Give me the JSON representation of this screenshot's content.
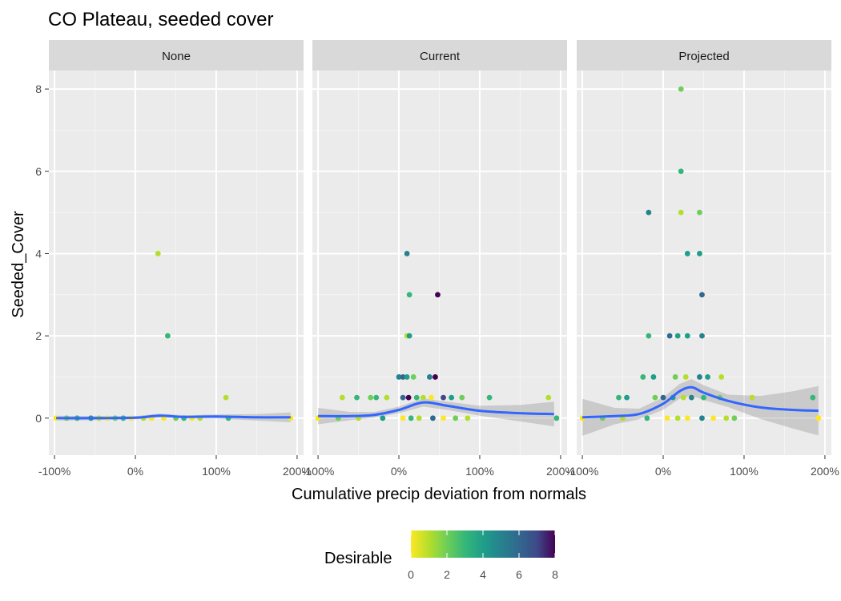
{
  "chart_data": {
    "type": "scatter",
    "title": "CO Plateau, seeded cover",
    "xlabel": "Cumulative precip deviation from normals",
    "ylabel": "Seeded_Cover",
    "xlim": [
      -1.0,
      2.0
    ],
    "ylim": [
      0,
      8
    ],
    "x_ticks": [
      -1,
      0,
      1,
      2
    ],
    "x_tick_labels": [
      "-100%",
      "0%",
      "100%",
      "200%"
    ],
    "y_ticks": [
      0,
      2,
      4,
      6,
      8
    ],
    "y_tick_labels": [
      "0",
      "2",
      "4",
      "6",
      "8"
    ],
    "grid": true,
    "legend": {
      "title": "Desirable",
      "position": "bottom",
      "type": "colorbar",
      "range": [
        0,
        8
      ],
      "ticks": [
        "0",
        "2",
        "4",
        "6",
        "8"
      ],
      "palette": "viridis reversed"
    },
    "facets": [
      {
        "label": "None",
        "points": [
          {
            "x": 0.28,
            "y": 4,
            "c": 1
          },
          {
            "x": 0.4,
            "y": 2,
            "c": 3
          },
          {
            "x": 1.12,
            "y": 0.5,
            "c": 1
          },
          {
            "x": -0.98,
            "y": 0,
            "c": 0
          },
          {
            "x": -0.85,
            "y": 0,
            "c": 2
          },
          {
            "x": -0.72,
            "y": 0,
            "c": 3
          },
          {
            "x": -0.55,
            "y": 0,
            "c": 4
          },
          {
            "x": -0.45,
            "y": 0,
            "c": 1
          },
          {
            "x": -0.35,
            "y": 0,
            "c": 0
          },
          {
            "x": -0.25,
            "y": 0,
            "c": 2
          },
          {
            "x": -0.15,
            "y": 0,
            "c": 3
          },
          {
            "x": -0.05,
            "y": 0,
            "c": 0
          },
          {
            "x": 0.1,
            "y": 0,
            "c": 1
          },
          {
            "x": 0.2,
            "y": 0,
            "c": 0
          },
          {
            "x": 0.35,
            "y": 0,
            "c": 0
          },
          {
            "x": 0.5,
            "y": 0,
            "c": 2
          },
          {
            "x": 0.6,
            "y": 0,
            "c": 3
          },
          {
            "x": 0.7,
            "y": 0,
            "c": 0
          },
          {
            "x": 0.8,
            "y": 0,
            "c": 1
          },
          {
            "x": 1.15,
            "y": 0,
            "c": 3
          },
          {
            "x": 1.92,
            "y": 0,
            "c": 0
          }
        ],
        "smooth": [
          {
            "x": -0.98,
            "y": 0.0
          },
          {
            "x": -0.5,
            "y": 0.0
          },
          {
            "x": 0.0,
            "y": 0.01
          },
          {
            "x": 0.3,
            "y": 0.06
          },
          {
            "x": 0.6,
            "y": 0.03
          },
          {
            "x": 1.0,
            "y": 0.04
          },
          {
            "x": 1.5,
            "y": 0.02
          },
          {
            "x": 1.92,
            "y": 0.02
          }
        ],
        "band_halfwidth": [
          0.06,
          0.05,
          0.04,
          0.05,
          0.04,
          0.05,
          0.08,
          0.12
        ]
      },
      {
        "label": "Current",
        "points": [
          {
            "x": 0.1,
            "y": 4,
            "c": 5
          },
          {
            "x": 0.13,
            "y": 3,
            "c": 3
          },
          {
            "x": 0.48,
            "y": 3,
            "c": 8
          },
          {
            "x": 0.1,
            "y": 2,
            "c": 1
          },
          {
            "x": 0.13,
            "y": 2,
            "c": 4
          },
          {
            "x": 0.0,
            "y": 1,
            "c": 5
          },
          {
            "x": 0.05,
            "y": 1,
            "c": 6
          },
          {
            "x": 0.1,
            "y": 1,
            "c": 4
          },
          {
            "x": 0.18,
            "y": 1,
            "c": 2
          },
          {
            "x": 0.38,
            "y": 1,
            "c": 5
          },
          {
            "x": 0.45,
            "y": 1,
            "c": 8
          },
          {
            "x": -0.7,
            "y": 0.5,
            "c": 1
          },
          {
            "x": -0.52,
            "y": 0.5,
            "c": 3
          },
          {
            "x": -0.35,
            "y": 0.5,
            "c": 2
          },
          {
            "x": -0.28,
            "y": 0.5,
            "c": 3
          },
          {
            "x": -0.15,
            "y": 0.5,
            "c": 1
          },
          {
            "x": 0.05,
            "y": 0.5,
            "c": 6
          },
          {
            "x": 0.12,
            "y": 0.5,
            "c": 8
          },
          {
            "x": 0.22,
            "y": 0.5,
            "c": 3
          },
          {
            "x": 0.3,
            "y": 0.5,
            "c": 1
          },
          {
            "x": 0.4,
            "y": 0.5,
            "c": 0
          },
          {
            "x": 0.55,
            "y": 0.5,
            "c": 7
          },
          {
            "x": 0.65,
            "y": 0.5,
            "c": 4
          },
          {
            "x": 0.78,
            "y": 0.5,
            "c": 2
          },
          {
            "x": 1.12,
            "y": 0.5,
            "c": 3
          },
          {
            "x": 1.85,
            "y": 0.5,
            "c": 1
          },
          {
            "x": -1.0,
            "y": 0,
            "c": 0
          },
          {
            "x": -0.75,
            "y": 0,
            "c": 2
          },
          {
            "x": -0.5,
            "y": 0,
            "c": 1
          },
          {
            "x": -0.2,
            "y": 0,
            "c": 4
          },
          {
            "x": 0.05,
            "y": 0,
            "c": 0
          },
          {
            "x": 0.15,
            "y": 0,
            "c": 3
          },
          {
            "x": 0.25,
            "y": 0,
            "c": 1
          },
          {
            "x": 0.42,
            "y": 0,
            "c": 6
          },
          {
            "x": 0.55,
            "y": 0,
            "c": 0
          },
          {
            "x": 0.7,
            "y": 0,
            "c": 2
          },
          {
            "x": 0.85,
            "y": 0,
            "c": 1
          },
          {
            "x": 1.95,
            "y": 0,
            "c": 3
          }
        ],
        "smooth": [
          {
            "x": -1.0,
            "y": 0.05
          },
          {
            "x": -0.6,
            "y": 0.05
          },
          {
            "x": -0.3,
            "y": 0.08
          },
          {
            "x": 0.0,
            "y": 0.2
          },
          {
            "x": 0.3,
            "y": 0.38
          },
          {
            "x": 0.6,
            "y": 0.3
          },
          {
            "x": 1.0,
            "y": 0.18
          },
          {
            "x": 1.5,
            "y": 0.12
          },
          {
            "x": 1.92,
            "y": 0.1
          }
        ],
        "band_halfwidth": [
          0.2,
          0.1,
          0.07,
          0.08,
          0.1,
          0.1,
          0.12,
          0.2,
          0.3
        ]
      },
      {
        "label": "Projected",
        "points": [
          {
            "x": 0.22,
            "y": 8,
            "c": 2
          },
          {
            "x": 0.22,
            "y": 6,
            "c": 3
          },
          {
            "x": -0.18,
            "y": 5,
            "c": 5
          },
          {
            "x": 0.22,
            "y": 5,
            "c": 1
          },
          {
            "x": 0.45,
            "y": 5,
            "c": 2
          },
          {
            "x": 0.3,
            "y": 4,
            "c": 4
          },
          {
            "x": 0.45,
            "y": 4,
            "c": 4
          },
          {
            "x": 0.48,
            "y": 3,
            "c": 6
          },
          {
            "x": -0.18,
            "y": 2,
            "c": 3
          },
          {
            "x": 0.08,
            "y": 2,
            "c": 6
          },
          {
            "x": 0.18,
            "y": 2,
            "c": 4
          },
          {
            "x": 0.3,
            "y": 2,
            "c": 4
          },
          {
            "x": 0.48,
            "y": 2,
            "c": 5
          },
          {
            "x": -0.25,
            "y": 1,
            "c": 3
          },
          {
            "x": -0.12,
            "y": 1,
            "c": 4
          },
          {
            "x": 0.15,
            "y": 1,
            "c": 2
          },
          {
            "x": 0.28,
            "y": 1,
            "c": 1
          },
          {
            "x": 0.45,
            "y": 1,
            "c": 5
          },
          {
            "x": 0.55,
            "y": 1,
            "c": 4
          },
          {
            "x": 0.72,
            "y": 1,
            "c": 1
          },
          {
            "x": -0.55,
            "y": 0.5,
            "c": 3
          },
          {
            "x": -0.45,
            "y": 0.5,
            "c": 4
          },
          {
            "x": -0.1,
            "y": 0.5,
            "c": 2
          },
          {
            "x": 0.0,
            "y": 0.5,
            "c": 6
          },
          {
            "x": 0.12,
            "y": 0.5,
            "c": 4
          },
          {
            "x": 0.25,
            "y": 0.5,
            "c": 1
          },
          {
            "x": 0.35,
            "y": 0.5,
            "c": 5
          },
          {
            "x": 0.5,
            "y": 0.5,
            "c": 3
          },
          {
            "x": 0.7,
            "y": 0.5,
            "c": 2
          },
          {
            "x": 1.1,
            "y": 0.5,
            "c": 1
          },
          {
            "x": 1.85,
            "y": 0.5,
            "c": 3
          },
          {
            "x": -1.0,
            "y": 0,
            "c": 0
          },
          {
            "x": -0.75,
            "y": 0,
            "c": 2
          },
          {
            "x": -0.5,
            "y": 0,
            "c": 1
          },
          {
            "x": -0.2,
            "y": 0,
            "c": 3
          },
          {
            "x": 0.05,
            "y": 0,
            "c": 0
          },
          {
            "x": 0.18,
            "y": 0,
            "c": 1
          },
          {
            "x": 0.3,
            "y": 0,
            "c": 0
          },
          {
            "x": 0.48,
            "y": 0,
            "c": 5
          },
          {
            "x": 0.62,
            "y": 0,
            "c": 0
          },
          {
            "x": 0.78,
            "y": 0,
            "c": 1
          },
          {
            "x": 0.88,
            "y": 0,
            "c": 2
          },
          {
            "x": 1.92,
            "y": 0,
            "c": 0
          }
        ],
        "smooth": [
          {
            "x": -1.0,
            "y": 0.02
          },
          {
            "x": -0.6,
            "y": 0.05
          },
          {
            "x": -0.3,
            "y": 0.1
          },
          {
            "x": 0.0,
            "y": 0.35
          },
          {
            "x": 0.2,
            "y": 0.65
          },
          {
            "x": 0.35,
            "y": 0.75
          },
          {
            "x": 0.5,
            "y": 0.62
          },
          {
            "x": 0.8,
            "y": 0.42
          },
          {
            "x": 1.2,
            "y": 0.26
          },
          {
            "x": 1.6,
            "y": 0.2
          },
          {
            "x": 1.92,
            "y": 0.18
          }
        ],
        "band_halfwidth": [
          0.45,
          0.2,
          0.13,
          0.15,
          0.18,
          0.2,
          0.18,
          0.15,
          0.28,
          0.45,
          0.6
        ]
      }
    ]
  }
}
